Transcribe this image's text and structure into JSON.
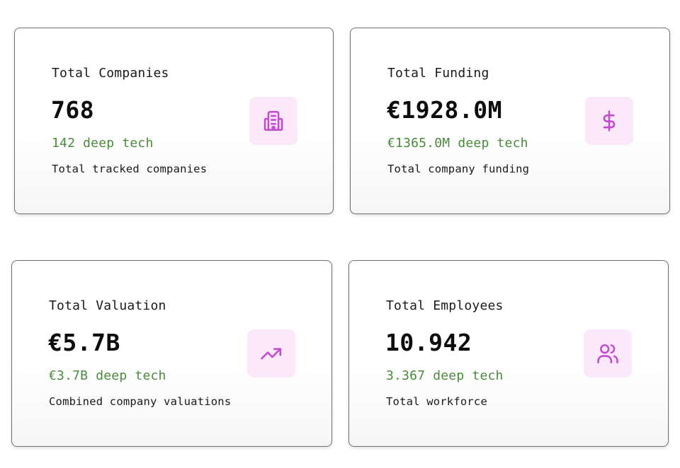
{
  "cards": [
    {
      "label": "Total Companies",
      "value": "768",
      "sub": "142 deep tech",
      "desc": "Total tracked companies",
      "icon": "building-icon"
    },
    {
      "label": "Total Funding",
      "value": "€1928.0M",
      "sub": "€1365.0M deep tech",
      "desc": "Total company funding",
      "icon": "dollar-icon"
    },
    {
      "label": "Total Valuation",
      "value": "€5.7B",
      "sub": "€3.7B deep tech",
      "desc": "Combined company valuations",
      "icon": "trending-up-icon"
    },
    {
      "label": "Total Employees",
      "value": "10.942",
      "sub": "3.367 deep tech",
      "desc": "Total workforce",
      "icon": "users-icon"
    }
  ],
  "colors": {
    "accent_icon": "#c44bd0",
    "icon_tile_bg": "#fbe8fb",
    "deep_tech_text": "#4a8a3c",
    "card_border": "#6e6e73"
  }
}
